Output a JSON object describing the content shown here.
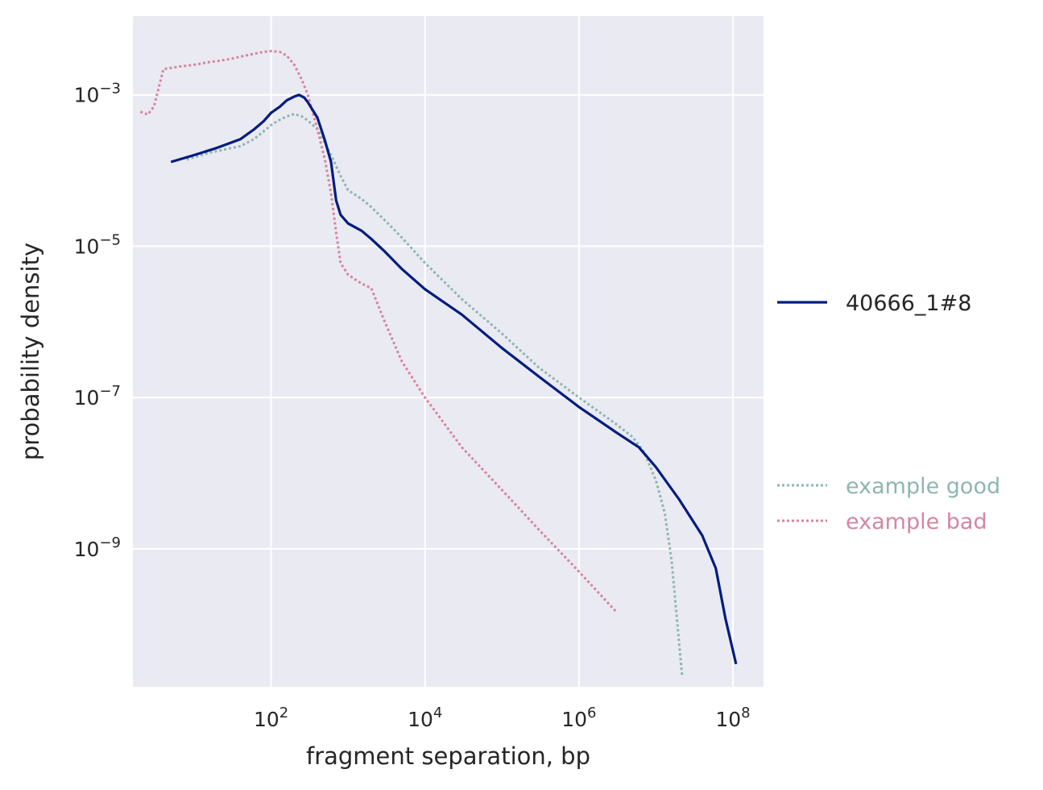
{
  "chart_data": {
    "type": "line",
    "xlabel": "fragment separation, bp",
    "ylabel": "probability density",
    "x_scale": "log",
    "y_scale": "log",
    "xlim": [
      1.6,
      250000000
    ],
    "ylim": [
      1.5e-11,
      0.011
    ],
    "x_ticks": [
      {
        "value": 100,
        "base": "10",
        "exp": "2"
      },
      {
        "value": 10000,
        "base": "10",
        "exp": "4"
      },
      {
        "value": 1000000,
        "base": "10",
        "exp": "6"
      },
      {
        "value": 100000000,
        "base": "10",
        "exp": "8"
      }
    ],
    "y_ticks": [
      {
        "value": 0.001,
        "base": "10",
        "exp": "−3"
      },
      {
        "value": 1e-05,
        "base": "10",
        "exp": "−5"
      },
      {
        "value": 1e-07,
        "base": "10",
        "exp": "−7"
      },
      {
        "value": 1e-09,
        "base": "10",
        "exp": "−9"
      }
    ],
    "grid": true,
    "background": "#eaeaf2",
    "legend": {
      "placement": "right",
      "groups": [
        {
          "entries": [
            {
              "series": "40666_1#8",
              "label": "40666_1#8",
              "style": "solid",
              "color": "#001c7f",
              "text_color": "#262626"
            }
          ]
        },
        {
          "entries": [
            {
              "series": "example good",
              "label": "example good",
              "style": "dotted",
              "color": "#8eb6b0",
              "text_color": "#8eb6b0"
            },
            {
              "series": "example bad",
              "label": "example bad",
              "style": "dotted",
              "color": "#d5869f",
              "text_color": "#d5869f"
            }
          ]
        }
      ]
    },
    "series": [
      {
        "name": "40666_1#8",
        "color": "#001c7f",
        "style": "solid",
        "x": [
          5,
          10,
          20,
          40,
          60,
          80,
          100,
          130,
          160,
          200,
          230,
          270,
          300,
          400,
          500,
          600,
          700,
          800,
          1000,
          1500,
          2000,
          3000,
          5000,
          10000,
          30000,
          100000,
          300000,
          1000000,
          3000000,
          6000000,
          10000000,
          20000000,
          40000000,
          60000000,
          80000000,
          110000000
        ],
        "y": [
          0.00013,
          0.00016,
          0.0002,
          0.00026,
          0.00035,
          0.00045,
          0.00058,
          0.0007,
          0.00085,
          0.00095,
          0.001,
          0.00092,
          0.0008,
          0.0005,
          0.00025,
          0.00013,
          4e-05,
          2.6e-05,
          2e-05,
          1.6e-05,
          1.25e-05,
          8.5e-06,
          5e-06,
          2.7e-06,
          1.25e-06,
          4.5e-07,
          1.9e-07,
          7.5e-08,
          3.5e-08,
          2.2e-08,
          1.2e-08,
          4.5e-09,
          1.5e-09,
          5.5e-10,
          1.2e-10,
          3e-11
        ]
      },
      {
        "name": "example good",
        "color": "#8eb6b0",
        "style": "dotted",
        "x": [
          8,
          15,
          25,
          40,
          60,
          80,
          100,
          130,
          160,
          200,
          250,
          300,
          400,
          500,
          600,
          800,
          1000,
          1500,
          2000,
          3000,
          5000,
          10000,
          30000,
          100000,
          300000,
          1000000,
          3000000,
          5000000,
          7000000,
          10000000,
          13000000,
          16000000,
          19000000,
          22000000
        ],
        "y": [
          0.00014,
          0.00017,
          0.00019,
          0.00021,
          0.00026,
          0.00033,
          0.0004,
          0.00047,
          0.00052,
          0.00056,
          0.00052,
          0.00046,
          0.00035,
          0.00023,
          0.00016,
          8.5e-05,
          5.5e-05,
          4.2e-05,
          3.3e-05,
          2.2e-05,
          1.3e-05,
          6e-06,
          2e-06,
          7e-07,
          2.5e-07,
          1e-07,
          4.5e-08,
          3e-08,
          1.9e-08,
          8e-09,
          3e-09,
          7e-10,
          1e-10,
          2e-11
        ]
      },
      {
        "name": "example bad",
        "color": "#d5869f",
        "style": "dotted",
        "x": [
          2,
          2.5,
          3,
          4,
          7,
          10,
          15,
          20,
          30,
          40,
          60,
          80,
          100,
          130,
          160,
          200,
          250,
          300,
          400,
          500,
          600,
          700,
          800,
          1000,
          1500,
          2000,
          3000,
          5000,
          10000,
          30000,
          100000,
          300000,
          1000000,
          3000000
        ],
        "y": [
          0.0006,
          0.00055,
          0.0007,
          0.0022,
          0.0024,
          0.0025,
          0.0027,
          0.0028,
          0.003,
          0.0032,
          0.0035,
          0.0037,
          0.0038,
          0.0037,
          0.0033,
          0.0025,
          0.0016,
          0.001,
          0.00035,
          0.00014,
          5e-05,
          1.5e-05,
          6e-06,
          4.2e-06,
          3.2e-06,
          2.8e-06,
          1e-06,
          3e-07,
          1e-07,
          2.2e-08,
          6e-09,
          1.8e-09,
          5e-10,
          1.5e-10
        ]
      }
    ]
  }
}
